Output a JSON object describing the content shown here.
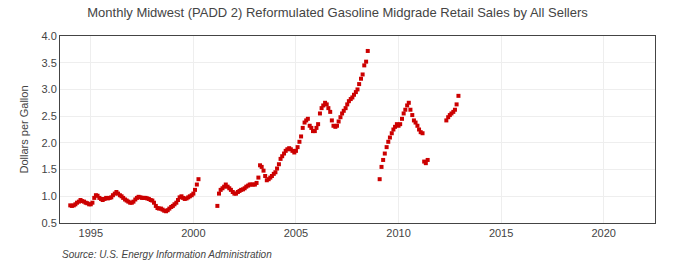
{
  "chart_data": {
    "type": "scatter",
    "title": "Monthly Midwest (PADD 2) Reformulated Gasoline Midgrade Retail Sales by All Sellers",
    "ylabel": "Dollars per Gallon",
    "annotations": [
      "Source: U.S. Energy Information Administration"
    ],
    "xlim": [
      1993.5,
      2022.5
    ],
    "ylim": [
      0.5,
      4.0
    ],
    "xticks": [
      1995,
      2000,
      2005,
      2010,
      2015,
      2020
    ],
    "yticks": [
      0.5,
      {
        "value": 1.0,
        "label": "1.0"
      },
      1.5,
      {
        "value": 2.0,
        "label": "2.0"
      },
      2.5,
      {
        "value": 3.0,
        "label": "3.0"
      },
      3.5,
      {
        "value": 4.0,
        "label": "4.0"
      }
    ],
    "grid": true,
    "color": "#cc0000",
    "marker": "square",
    "x": [
      1994.0,
      1994.08,
      1994.17,
      1994.25,
      1994.33,
      1994.42,
      1994.5,
      1994.58,
      1994.67,
      1994.75,
      1994.83,
      1994.92,
      1995.0,
      1995.08,
      1995.17,
      1995.25,
      1995.33,
      1995.42,
      1995.5,
      1995.58,
      1995.67,
      1995.75,
      1995.83,
      1995.92,
      1996.0,
      1996.08,
      1996.17,
      1996.25,
      1996.33,
      1996.42,
      1996.5,
      1996.58,
      1996.67,
      1996.75,
      1996.83,
      1996.92,
      1997.0,
      1997.08,
      1997.17,
      1997.25,
      1997.33,
      1997.42,
      1997.5,
      1997.58,
      1997.67,
      1997.75,
      1997.83,
      1997.92,
      1998.0,
      1998.08,
      1998.17,
      1998.25,
      1998.33,
      1998.42,
      1998.5,
      1998.58,
      1998.67,
      1998.75,
      1998.83,
      1998.92,
      1999.0,
      1999.08,
      1999.17,
      1999.25,
      1999.33,
      1999.42,
      1999.5,
      1999.58,
      1999.67,
      1999.75,
      1999.83,
      1999.92,
      2000.0,
      2000.08,
      2000.17,
      2000.25,
      2001.17,
      2001.25,
      2001.33,
      2001.42,
      2001.5,
      2001.58,
      2001.67,
      2001.75,
      2001.83,
      2001.92,
      2002.0,
      2002.08,
      2002.17,
      2002.25,
      2002.33,
      2002.42,
      2002.5,
      2002.58,
      2002.67,
      2002.75,
      2002.83,
      2002.92,
      2003.0,
      2003.08,
      2003.17,
      2003.25,
      2003.33,
      2003.42,
      2003.5,
      2003.58,
      2003.67,
      2003.75,
      2003.83,
      2003.92,
      2004.0,
      2004.08,
      2004.17,
      2004.25,
      2004.33,
      2004.42,
      2004.5,
      2004.58,
      2004.67,
      2004.75,
      2004.83,
      2004.92,
      2005.0,
      2005.08,
      2005.17,
      2005.25,
      2005.33,
      2005.42,
      2005.5,
      2005.58,
      2005.67,
      2005.75,
      2005.83,
      2005.92,
      2006.0,
      2006.08,
      2006.17,
      2006.25,
      2006.33,
      2006.42,
      2006.5,
      2006.58,
      2006.67,
      2006.75,
      2006.83,
      2006.92,
      2007.0,
      2007.08,
      2007.17,
      2007.25,
      2007.33,
      2007.42,
      2007.5,
      2007.58,
      2007.67,
      2007.75,
      2007.83,
      2007.92,
      2008.0,
      2008.08,
      2008.17,
      2008.25,
      2008.33,
      2008.42,
      2008.5,
      2009.08,
      2009.17,
      2009.25,
      2009.33,
      2009.42,
      2009.5,
      2009.58,
      2009.67,
      2009.75,
      2009.83,
      2009.92,
      2010.0,
      2010.08,
      2010.17,
      2010.25,
      2010.33,
      2010.42,
      2010.5,
      2010.58,
      2010.67,
      2010.75,
      2010.83,
      2010.92,
      2011.0,
      2011.08,
      2011.17,
      2011.25,
      2011.33,
      2011.42,
      2012.33,
      2012.42,
      2012.5,
      2012.58,
      2012.67,
      2012.75,
      2012.83,
      2012.92
    ],
    "values": [
      0.83,
      0.82,
      0.83,
      0.85,
      0.88,
      0.9,
      0.93,
      0.91,
      0.9,
      0.88,
      0.87,
      0.85,
      0.85,
      0.88,
      0.97,
      1.02,
      1.01,
      0.97,
      0.95,
      0.93,
      0.95,
      0.97,
      0.96,
      0.97,
      0.98,
      1.02,
      1.05,
      1.08,
      1.05,
      1.02,
      1.0,
      0.97,
      0.94,
      0.92,
      0.9,
      0.88,
      0.88,
      0.9,
      0.94,
      0.97,
      0.99,
      0.98,
      0.97,
      0.97,
      0.97,
      0.96,
      0.95,
      0.93,
      0.92,
      0.88,
      0.82,
      0.78,
      0.77,
      0.77,
      0.75,
      0.73,
      0.72,
      0.74,
      0.77,
      0.8,
      0.82,
      0.85,
      0.88,
      0.93,
      0.98,
      1.0,
      0.97,
      0.95,
      0.96,
      0.98,
      1.0,
      1.02,
      1.05,
      1.12,
      1.22,
      1.32,
      0.82,
      1.05,
      1.12,
      1.15,
      1.18,
      1.22,
      1.18,
      1.15,
      1.12,
      1.08,
      1.05,
      1.05,
      1.08,
      1.1,
      1.12,
      1.13,
      1.15,
      1.18,
      1.2,
      1.22,
      1.22,
      1.22,
      1.22,
      1.25,
      1.35,
      1.58,
      1.55,
      1.48,
      1.38,
      1.3,
      1.32,
      1.35,
      1.38,
      1.42,
      1.45,
      1.52,
      1.6,
      1.7,
      1.75,
      1.8,
      1.85,
      1.88,
      1.9,
      1.88,
      1.85,
      1.82,
      1.85,
      1.92,
      2.02,
      2.12,
      2.28,
      2.38,
      2.42,
      2.45,
      2.32,
      2.28,
      2.22,
      2.22,
      2.28,
      2.35,
      2.55,
      2.65,
      2.7,
      2.75,
      2.72,
      2.65,
      2.58,
      2.42,
      2.32,
      2.3,
      2.32,
      2.4,
      2.48,
      2.55,
      2.6,
      2.65,
      2.72,
      2.78,
      2.82,
      2.85,
      2.9,
      2.95,
      3.0,
      3.1,
      3.2,
      3.28,
      3.45,
      3.52,
      3.72,
      1.32,
      1.55,
      1.68,
      1.8,
      1.92,
      2.02,
      2.1,
      2.18,
      2.25,
      2.3,
      2.35,
      2.32,
      2.35,
      2.45,
      2.55,
      2.62,
      2.7,
      2.75,
      2.62,
      2.52,
      2.42,
      2.38,
      2.32,
      2.25,
      2.2,
      2.18,
      1.65,
      1.62,
      1.68,
      2.42,
      2.48,
      2.52,
      2.55,
      2.58,
      2.62,
      2.72,
      2.88
    ]
  }
}
